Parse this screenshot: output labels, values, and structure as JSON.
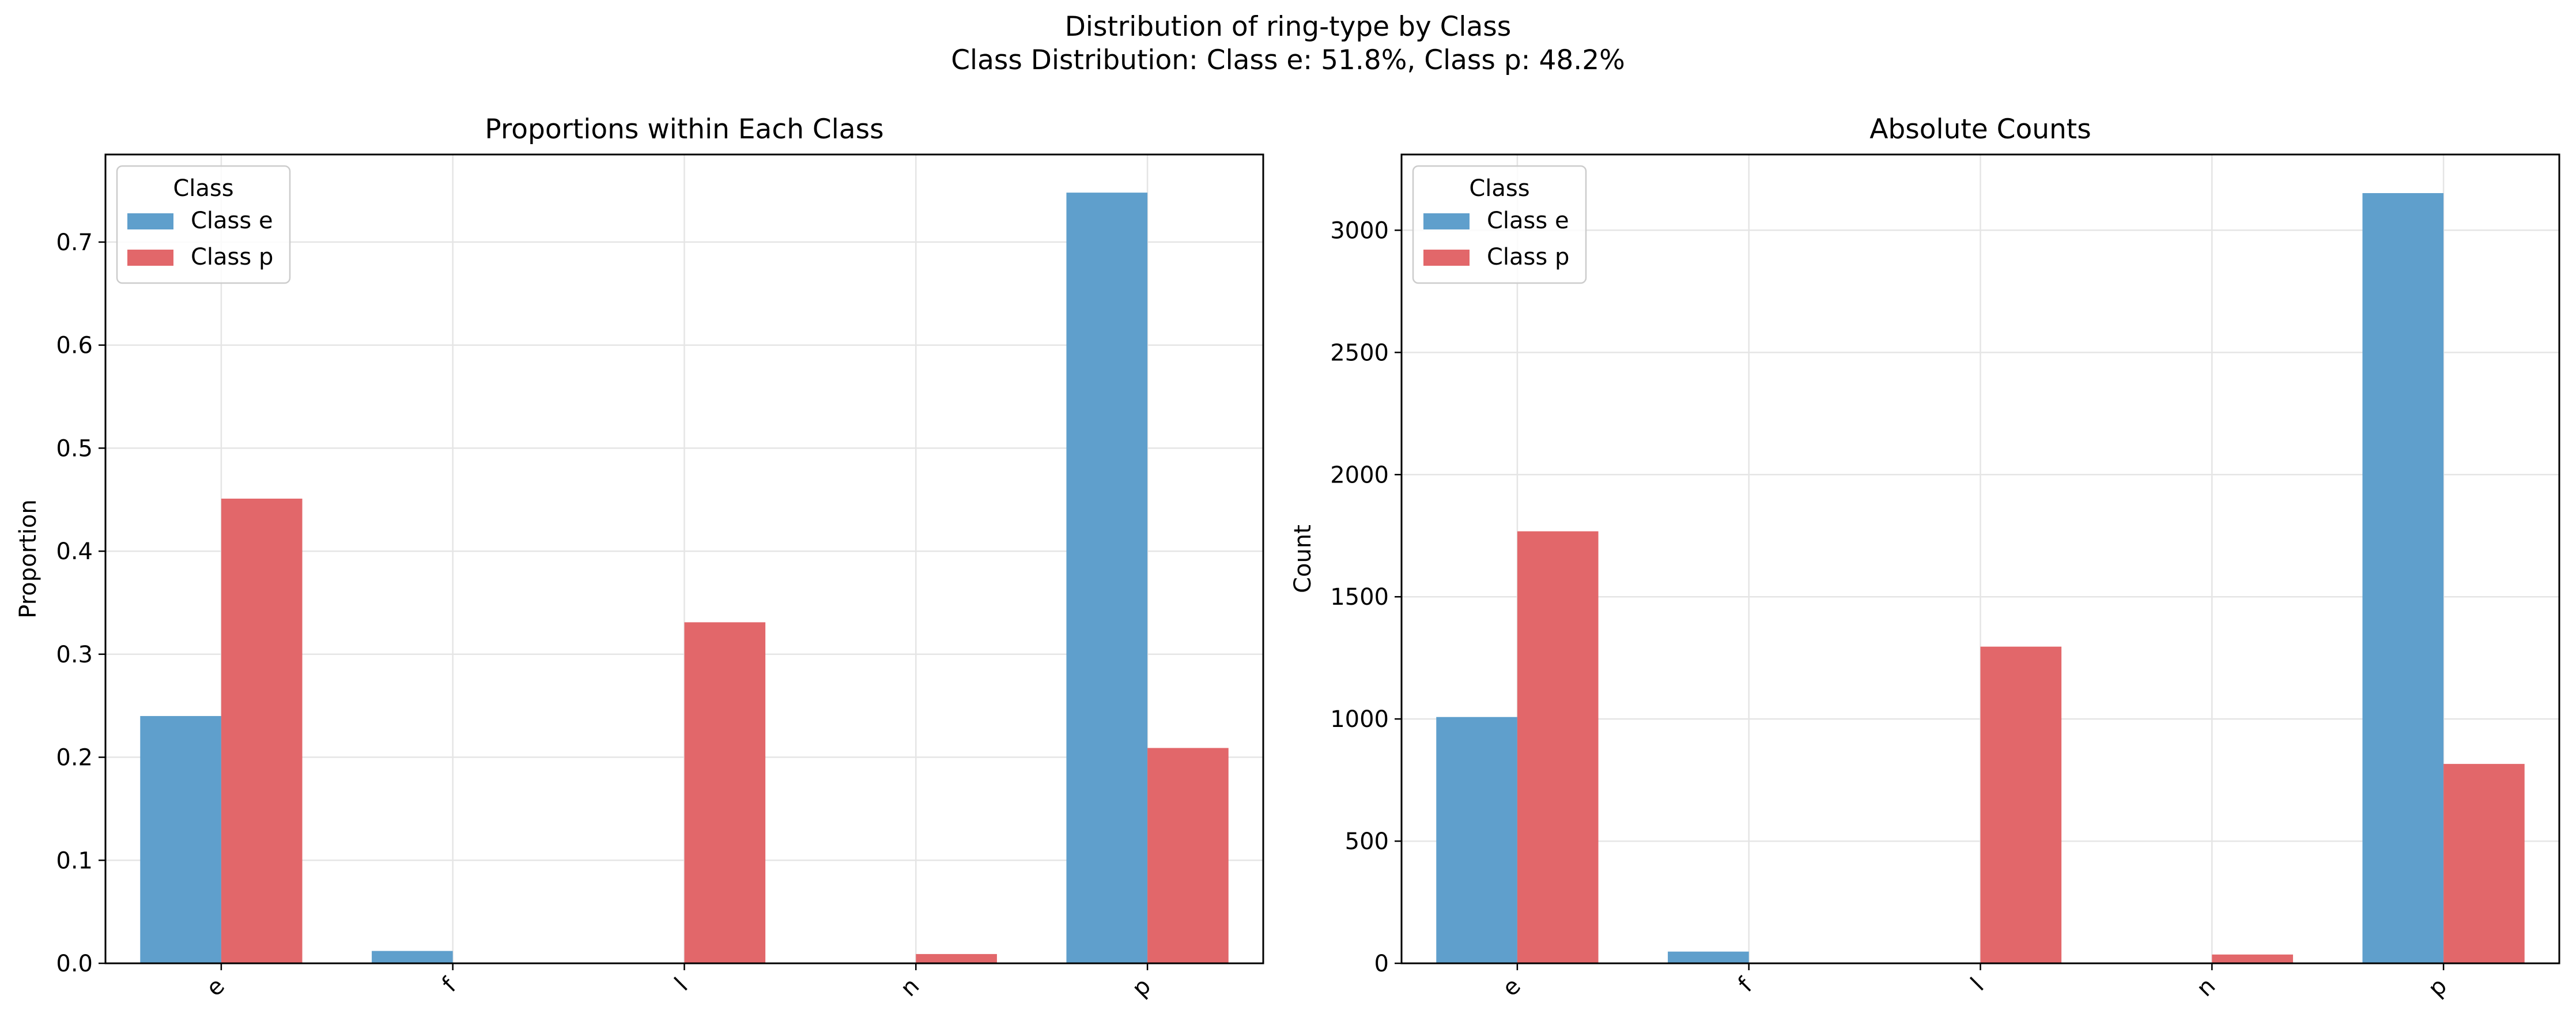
{
  "figure": {
    "title_line1": "Distribution of ring-type by Class",
    "title_line2": "Class Distribution: Class e: 51.8%, Class p: 48.2%"
  },
  "colors": {
    "class_e": "#5f9fcc",
    "class_p": "#e2676a",
    "grid": "#e5e5e5"
  },
  "chart_data": [
    {
      "type": "bar",
      "title": "Proportions within Each Class",
      "xlabel": "",
      "ylabel": "Proportion",
      "categories": [
        "e",
        "f",
        "l",
        "n",
        "p"
      ],
      "series": [
        {
          "name": "Class e",
          "values": [
            0.24,
            0.012,
            0.0,
            0.0,
            0.748
          ]
        },
        {
          "name": "Class p",
          "values": [
            0.451,
            0.0,
            0.331,
            0.009,
            0.209
          ]
        }
      ],
      "ylim": [
        0,
        0.785
      ],
      "yticks": [
        0.0,
        0.1,
        0.2,
        0.3,
        0.4,
        0.5,
        0.6,
        0.7
      ],
      "ytick_labels": [
        "0.0",
        "0.1",
        "0.2",
        "0.3",
        "0.4",
        "0.5",
        "0.6",
        "0.7"
      ],
      "legend_title": "Class",
      "legend_position": "upper-left",
      "grid": true
    },
    {
      "type": "bar",
      "title": "Absolute Counts",
      "xlabel": "",
      "ylabel": "Count",
      "categories": [
        "e",
        "f",
        "l",
        "n",
        "p"
      ],
      "series": [
        {
          "name": "Class e",
          "values": [
            1008,
            48,
            0,
            0,
            3152
          ]
        },
        {
          "name": "Class p",
          "values": [
            1768,
            0,
            1296,
            36,
            816
          ]
        }
      ],
      "ylim": [
        0,
        3310
      ],
      "yticks": [
        0,
        500,
        1000,
        1500,
        2000,
        2500,
        3000
      ],
      "ytick_labels": [
        "0",
        "500",
        "1000",
        "1500",
        "2000",
        "2500",
        "3000"
      ],
      "legend_title": "Class",
      "legend_position": "upper-left",
      "grid": true
    }
  ]
}
